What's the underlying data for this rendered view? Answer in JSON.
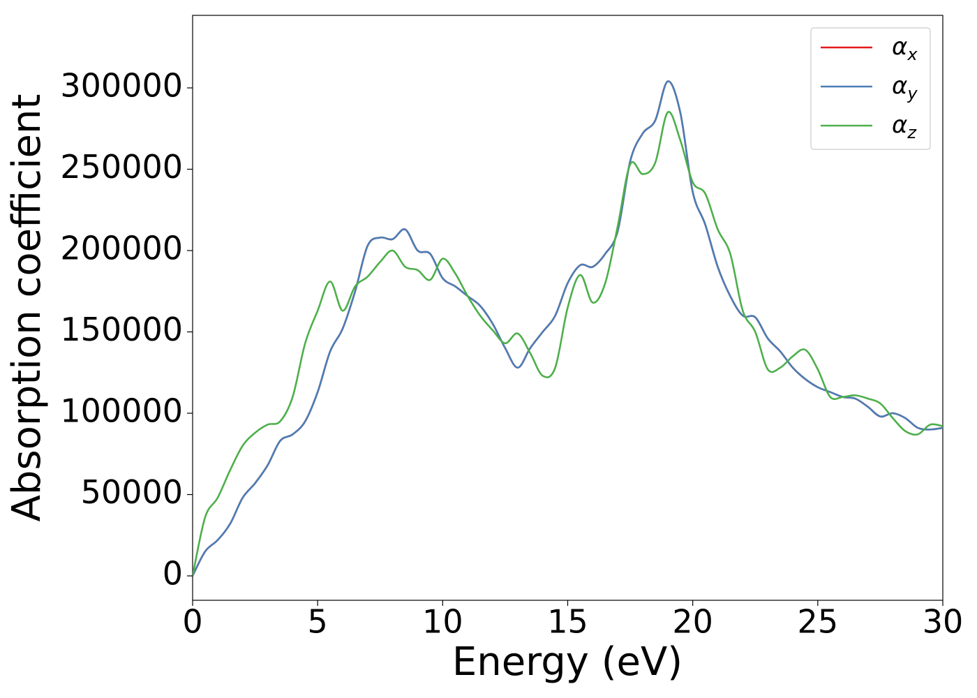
{
  "chart_data": {
    "type": "line",
    "xlabel": "Energy (eV)",
    "ylabel": "Absorption coefficient",
    "x": [
      0,
      0.5,
      1,
      1.5,
      2,
      2.5,
      3,
      3.5,
      4,
      4.5,
      5,
      5.5,
      6,
      6.5,
      7,
      7.5,
      8,
      8.5,
      9,
      9.5,
      10,
      10.5,
      11,
      11.5,
      12,
      12.5,
      13,
      13.5,
      14,
      14.5,
      15,
      15.5,
      16,
      16.5,
      17,
      17.5,
      18,
      18.5,
      19,
      19.5,
      20,
      20.5,
      21,
      21.5,
      22,
      22.5,
      23,
      23.5,
      24,
      24.5,
      25,
      25.5,
      26,
      26.5,
      27,
      27.5,
      28,
      28.5,
      29,
      29.5,
      30
    ],
    "series": [
      {
        "name": "αx",
        "color": "#e41a1c",
        "values": [
          0,
          15000,
          22000,
          32000,
          48000,
          57000,
          68000,
          83000,
          87000,
          95000,
          113000,
          138000,
          152000,
          175000,
          203000,
          208000,
          207000,
          213000,
          200000,
          198000,
          183000,
          178000,
          172000,
          166000,
          155000,
          140000,
          128000,
          140000,
          150000,
          160000,
          180000,
          191000,
          190000,
          198000,
          212000,
          255000,
          272000,
          280000,
          304000,
          285000,
          236000,
          216000,
          190000,
          172000,
          160000,
          159000,
          146000,
          138000,
          128000,
          121000,
          116000,
          113000,
          110000,
          109000,
          104000,
          98000,
          100000,
          97000,
          91000,
          90000,
          91000
        ]
      },
      {
        "name": "αy",
        "color": "#4a7eb5",
        "values": [
          0,
          15000,
          22000,
          32000,
          48000,
          57000,
          68000,
          83000,
          87000,
          95000,
          113000,
          138000,
          152000,
          175000,
          203000,
          208000,
          207000,
          213000,
          200000,
          198000,
          183000,
          178000,
          172000,
          166000,
          155000,
          140000,
          128000,
          140000,
          150000,
          160000,
          180000,
          191000,
          190000,
          198000,
          212000,
          255000,
          272000,
          280000,
          304000,
          285000,
          236000,
          216000,
          190000,
          172000,
          160000,
          159000,
          146000,
          138000,
          128000,
          121000,
          116000,
          113000,
          110000,
          109000,
          104000,
          98000,
          100000,
          97000,
          91000,
          90000,
          91000
        ]
      },
      {
        "name": "αz",
        "color": "#4daf4a",
        "values": [
          0,
          36000,
          48000,
          65000,
          80000,
          88000,
          93000,
          95000,
          110000,
          143000,
          163000,
          181000,
          163000,
          178000,
          184000,
          193000,
          200000,
          190000,
          188000,
          182000,
          195000,
          186000,
          172000,
          160000,
          151000,
          143000,
          149000,
          137000,
          123000,
          128000,
          165000,
          185000,
          168000,
          180000,
          215000,
          253000,
          247000,
          254000,
          285000,
          268000,
          242000,
          235000,
          213000,
          198000,
          163000,
          150000,
          127000,
          128000,
          135000,
          139000,
          127000,
          110000,
          110000,
          111000,
          109000,
          106000,
          97000,
          89000,
          87000,
          93000,
          92000
        ]
      }
    ],
    "xlim": [
      0,
      30
    ],
    "xticks": [
      0,
      5,
      10,
      15,
      20,
      25,
      30
    ],
    "ylim": [
      -15000,
      344600
    ],
    "yticks": [
      0,
      50000,
      100000,
      150000,
      200000,
      250000,
      300000
    ],
    "legend": "upper right",
    "grid": false
  }
}
